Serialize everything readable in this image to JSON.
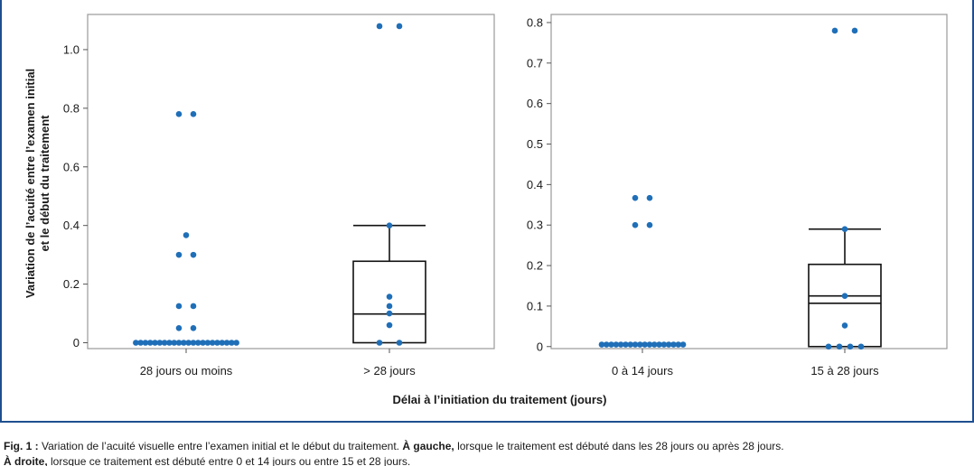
{
  "chart_data": [
    {
      "type": "scatter",
      "subtype": "box-and-dot",
      "panel": "left",
      "categories": [
        "28 jours ou moins",
        "> 28 jours"
      ],
      "ylim": [
        -0.02,
        1.12
      ],
      "yticks": [
        0,
        0.2,
        0.4,
        0.6,
        0.8,
        1.0
      ],
      "ytick_labels": [
        "0",
        "0.2",
        "0.4",
        "0.6",
        "0.8",
        "1.0"
      ],
      "ylabel_line1": "Variation de l’acuité entre l’examen initial",
      "ylabel_line2": "et le début du traitement",
      "grid": false,
      "point_color": "#1f6fb8",
      "points": [
        {
          "category": 0,
          "values": [
            0,
            0,
            0,
            0,
            0,
            0,
            0,
            0,
            0,
            0,
            0,
            0,
            0,
            0,
            0,
            0,
            0,
            0,
            0,
            0,
            0,
            0,
            0.05,
            0.05,
            0.125,
            0.125,
            0.3,
            0.3,
            0.367,
            0.78,
            0.78
          ]
        },
        {
          "category": 1,
          "values": [
            0,
            0,
            0.06,
            0.1,
            0.125,
            0.157,
            0.4,
            1.08,
            1.08
          ]
        }
      ],
      "boxes": [
        {
          "category": 1,
          "min": 0,
          "q1": 0,
          "median": 0.098,
          "q3": 0.278,
          "max": 0.4
        }
      ]
    },
    {
      "type": "scatter",
      "subtype": "box-and-dot",
      "panel": "right",
      "categories": [
        "0 à 14 jours",
        "15 à 28 jours"
      ],
      "ylim": [
        -0.005,
        0.82
      ],
      "yticks": [
        0,
        0.1,
        0.2,
        0.3,
        0.4,
        0.5,
        0.6,
        0.7,
        0.8
      ],
      "ytick_labels": [
        "0",
        "0.1",
        "0.2",
        "0.3",
        "0.4",
        "0.5",
        "0.6",
        "0.7",
        "0.8"
      ],
      "grid": false,
      "point_color": "#1f6fb8",
      "points": [
        {
          "category": 0,
          "values": [
            0.005,
            0.005,
            0.005,
            0.005,
            0.005,
            0.005,
            0.005,
            0.005,
            0.005,
            0.005,
            0.005,
            0.005,
            0.005,
            0.005,
            0.005,
            0.005,
            0.005,
            0.005,
            0.3,
            0.3,
            0.367,
            0.367
          ]
        },
        {
          "category": 1,
          "values": [
            0,
            0,
            0,
            0,
            0.052,
            0.125,
            0.29,
            0.78,
            0.78
          ]
        }
      ],
      "boxes": [
        {
          "category": 1,
          "min": 0,
          "q1": 0,
          "median": 0.107,
          "mean": 0.125,
          "q3": 0.203,
          "max": 0.29
        }
      ]
    }
  ],
  "xlabel": "Délai à l’initiation du traitement (jours)",
  "caption": {
    "fig_label": "Fig. 1 :",
    "line1_text": "Variation de l’acuité visuelle entre l’examen initial et le début du traitement.",
    "left_bold": "À gauche,",
    "line1_rest": "lorsque le traitement est débuté dans les 28 jours ou après 28 jours.",
    "right_bold": "À droite,",
    "line2_rest": "lorsque ce traitement est débuté entre 0 et 14 jours ou entre 15 et 28 jours."
  }
}
